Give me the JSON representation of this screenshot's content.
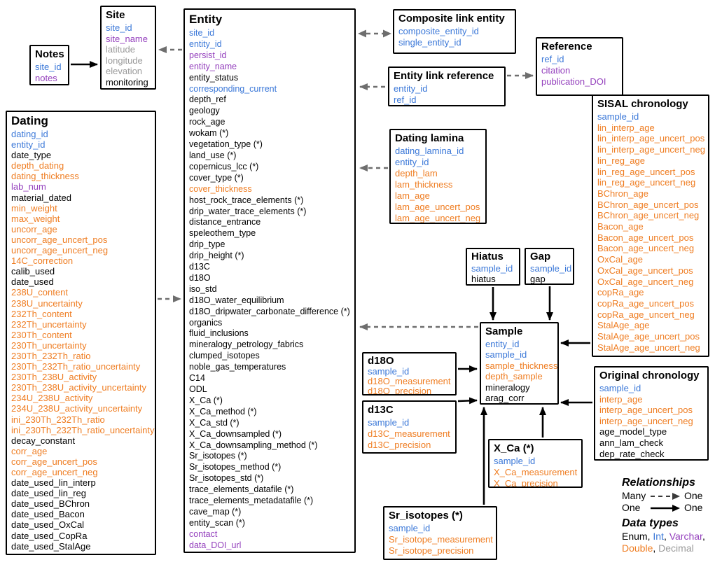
{
  "colors": {
    "int": "#3B78D8",
    "varchar": "#9440BD",
    "double": "#EF7D22",
    "decimal": "#9A9A9A",
    "enum": "#000000"
  },
  "tables": {
    "notes": {
      "title": "Notes",
      "fields": [
        {
          "name": "site_id",
          "type": "int"
        },
        {
          "name": "notes",
          "type": "varchar"
        }
      ]
    },
    "site": {
      "title": "Site",
      "fields": [
        {
          "name": "site_id",
          "type": "int"
        },
        {
          "name": "site_name",
          "type": "varchar"
        },
        {
          "name": "latitude",
          "type": "decimal"
        },
        {
          "name": "longitude",
          "type": "decimal"
        },
        {
          "name": "elevation",
          "type": "decimal"
        },
        {
          "name": "monitoring",
          "type": "enum"
        }
      ]
    },
    "entity": {
      "title": "Entity",
      "fields": [
        {
          "name": "site_id",
          "type": "int"
        },
        {
          "name": "entity_id",
          "type": "int"
        },
        {
          "name": "persist_id",
          "type": "varchar"
        },
        {
          "name": "entity_name",
          "type": "varchar"
        },
        {
          "name": "entity_status",
          "type": "enum"
        },
        {
          "name": "corresponding_current",
          "type": "int"
        },
        {
          "name": "depth_ref",
          "type": "enum"
        },
        {
          "name": "geology",
          "type": "enum"
        },
        {
          "name": "rock_age",
          "type": "enum"
        },
        {
          "name": "wokam (*)",
          "type": "enum"
        },
        {
          "name": "vegetation_type (*)",
          "type": "enum"
        },
        {
          "name": "land_use (*)",
          "type": "enum"
        },
        {
          "name": "copernicus_lcc (*)",
          "type": "enum"
        },
        {
          "name": "cover_type (*)",
          "type": "enum"
        },
        {
          "name": "cover_thickness",
          "type": "double"
        },
        {
          "name": "host_rock_trace_elements (*)",
          "type": "enum"
        },
        {
          "name": "drip_water_trace_elements (*)",
          "type": "enum"
        },
        {
          "name": "distance_entrance",
          "type": "enum"
        },
        {
          "name": "speleothem_type",
          "type": "enum"
        },
        {
          "name": "drip_type",
          "type": "enum"
        },
        {
          "name": "drip_height (*)",
          "type": "enum"
        },
        {
          "name": "d13C",
          "type": "enum"
        },
        {
          "name": "d18O",
          "type": "enum"
        },
        {
          "name": "iso_std",
          "type": "enum"
        },
        {
          "name": "d18O_water_equilibrium",
          "type": "enum"
        },
        {
          "name": "d18O_dripwater_carbonate_difference (*)",
          "type": "enum"
        },
        {
          "name": "organics",
          "type": "enum"
        },
        {
          "name": "fluid_inclusions",
          "type": "enum"
        },
        {
          "name": "mineralogy_petrology_fabrics",
          "type": "enum"
        },
        {
          "name": "clumped_isotopes",
          "type": "enum"
        },
        {
          "name": "noble_gas_temperatures",
          "type": "enum"
        },
        {
          "name": "C14",
          "type": "enum"
        },
        {
          "name": "ODL",
          "type": "enum"
        },
        {
          "name": "X_Ca (*)",
          "type": "enum"
        },
        {
          "name": "X_Ca_method (*)",
          "type": "enum"
        },
        {
          "name": "X_Ca_std (*)",
          "type": "enum"
        },
        {
          "name": "X_Ca_downsampled (*)",
          "type": "enum"
        },
        {
          "name": "X_Ca_downsampling_method (*)",
          "type": "enum"
        },
        {
          "name": "Sr_isotopes (*)",
          "type": "enum"
        },
        {
          "name": "Sr_isotopes_method (*)",
          "type": "enum"
        },
        {
          "name": "Sr_isotopes_std (*)",
          "type": "enum"
        },
        {
          "name": "trace_elements_datafile (*)",
          "type": "enum"
        },
        {
          "name": "trace_elements_metadatafile (*)",
          "type": "enum"
        },
        {
          "name": "cave_map (*)",
          "type": "enum"
        },
        {
          "name": "entity_scan (*)",
          "type": "enum"
        },
        {
          "name": "contact",
          "type": "varchar"
        },
        {
          "name": "data_DOI_url",
          "type": "varchar"
        }
      ]
    },
    "composite_link_entity": {
      "title": "Composite link entity",
      "fields": [
        {
          "name": "composite_entity_id",
          "type": "int"
        },
        {
          "name": "single_entity_id",
          "type": "int"
        }
      ]
    },
    "entity_link_reference": {
      "title": "Entity link reference",
      "fields": [
        {
          "name": "entity_id",
          "type": "int"
        },
        {
          "name": "ref_id",
          "type": "int"
        }
      ]
    },
    "reference": {
      "title": "Reference",
      "fields": [
        {
          "name": "ref_id",
          "type": "int"
        },
        {
          "name": "citation",
          "type": "varchar"
        },
        {
          "name": "publication_DOI",
          "type": "varchar"
        }
      ]
    },
    "dating_lamina": {
      "title": "Dating lamina",
      "fields": [
        {
          "name": "dating_lamina_id",
          "type": "int"
        },
        {
          "name": "entity_id",
          "type": "int"
        },
        {
          "name": "depth_lam",
          "type": "double"
        },
        {
          "name": "lam_thickness",
          "type": "double"
        },
        {
          "name": "lam_age",
          "type": "double"
        },
        {
          "name": "lam_age_uncert_pos",
          "type": "double"
        },
        {
          "name": "lam_age_uncert_neg",
          "type": "double"
        }
      ]
    },
    "sisal_chronology": {
      "title": "SISAL chronology",
      "fields": [
        {
          "name": "sample_id",
          "type": "int"
        },
        {
          "name": "lin_interp_age",
          "type": "double"
        },
        {
          "name": "lin_interp_age_uncert_pos",
          "type": "double"
        },
        {
          "name": "lin_interp_age_uncert_neg",
          "type": "double"
        },
        {
          "name": "lin_reg_age",
          "type": "double"
        },
        {
          "name": "lin_reg_age_uncert_pos",
          "type": "double"
        },
        {
          "name": "lin_reg_age_uncert_neg",
          "type": "double"
        },
        {
          "name": "BChron_age",
          "type": "double"
        },
        {
          "name": "BChron_age_uncert_pos",
          "type": "double"
        },
        {
          "name": "BChron_age_uncert_neg",
          "type": "double"
        },
        {
          "name": "Bacon_age",
          "type": "double"
        },
        {
          "name": "Bacon_age_uncert_pos",
          "type": "double"
        },
        {
          "name": "Bacon_age_uncert_neg",
          "type": "double"
        },
        {
          "name": "OxCal_age",
          "type": "double"
        },
        {
          "name": "OxCal_age_uncert_pos",
          "type": "double"
        },
        {
          "name": "OxCal_age_uncert_neg",
          "type": "double"
        },
        {
          "name": "copRa_age",
          "type": "double"
        },
        {
          "name": "copRa_age_uncert_pos",
          "type": "double"
        },
        {
          "name": "copRa_age_uncert_neg",
          "type": "double"
        },
        {
          "name": "StalAge_age",
          "type": "double"
        },
        {
          "name": "StalAge_age_uncert_pos",
          "type": "double"
        },
        {
          "name": "StalAge_age_uncert_neg",
          "type": "double"
        }
      ]
    },
    "dating": {
      "title": "Dating",
      "fields": [
        {
          "name": "dating_id",
          "type": "int"
        },
        {
          "name": "entity_id",
          "type": "int"
        },
        {
          "name": "date_type",
          "type": "enum"
        },
        {
          "name": "depth_dating",
          "type": "double"
        },
        {
          "name": "dating_thickness",
          "type": "double"
        },
        {
          "name": "lab_num",
          "type": "varchar"
        },
        {
          "name": "material_dated",
          "type": "enum"
        },
        {
          "name": "min_weight",
          "type": "double"
        },
        {
          "name": "max_weight",
          "type": "double"
        },
        {
          "name": "uncorr_age",
          "type": "double"
        },
        {
          "name": "uncorr_age_uncert_pos",
          "type": "double"
        },
        {
          "name": "uncorr_age_uncert_neg",
          "type": "double"
        },
        {
          "name": "14C_correction",
          "type": "double"
        },
        {
          "name": "calib_used",
          "type": "enum"
        },
        {
          "name": "date_used",
          "type": "enum"
        },
        {
          "name": "238U_content",
          "type": "double"
        },
        {
          "name": "238U_uncertainty",
          "type": "double"
        },
        {
          "name": "232Th_content",
          "type": "double"
        },
        {
          "name": "232Th_uncertainty",
          "type": "double"
        },
        {
          "name": "230Th_content",
          "type": "double"
        },
        {
          "name": "230Th_uncertainty",
          "type": "double"
        },
        {
          "name": "230Th_232Th_ratio",
          "type": "double"
        },
        {
          "name": "230Th_232Th_ratio_uncertainty",
          "type": "double"
        },
        {
          "name": "230Th_238U_activity",
          "type": "double"
        },
        {
          "name": "230Th_238U_activity_uncertainty",
          "type": "double"
        },
        {
          "name": "234U_238U_activity",
          "type": "double"
        },
        {
          "name": "234U_238U_activity_uncertainty",
          "type": "double"
        },
        {
          "name": "ini_230Th_232Th_ratio",
          "type": "double"
        },
        {
          "name": "ini_230Th_232Th_ratio_uncertainty",
          "type": "double"
        },
        {
          "name": "decay_constant",
          "type": "enum"
        },
        {
          "name": "corr_age",
          "type": "double"
        },
        {
          "name": "corr_age_uncert_pos",
          "type": "double"
        },
        {
          "name": "corr_age_uncert_neg",
          "type": "double"
        },
        {
          "name": "date_used_lin_interp",
          "type": "enum"
        },
        {
          "name": "date_used_lin_reg",
          "type": "enum"
        },
        {
          "name": "date_used_BChron",
          "type": "enum"
        },
        {
          "name": "date_used_Bacon",
          "type": "enum"
        },
        {
          "name": "date_used_OxCal",
          "type": "enum"
        },
        {
          "name": "date_used_CopRa",
          "type": "enum"
        },
        {
          "name": "date_used_StalAge",
          "type": "enum"
        }
      ]
    },
    "hiatus": {
      "title": "Hiatus",
      "fields": [
        {
          "name": "sample_id",
          "type": "int"
        },
        {
          "name": "hiatus",
          "type": "enum"
        }
      ]
    },
    "gap": {
      "title": "Gap",
      "fields": [
        {
          "name": "sample_id",
          "type": "int"
        },
        {
          "name": "gap",
          "type": "enum"
        }
      ]
    },
    "sample": {
      "title": "Sample",
      "fields": [
        {
          "name": "entity_id",
          "type": "int"
        },
        {
          "name": "sample_id",
          "type": "int"
        },
        {
          "name": "sample_thickness",
          "type": "double"
        },
        {
          "name": "depth_sample",
          "type": "double"
        },
        {
          "name": "mineralogy",
          "type": "enum"
        },
        {
          "name": "arag_corr",
          "type": "enum"
        }
      ]
    },
    "d18o": {
      "title": "d18O",
      "fields": [
        {
          "name": "sample_id",
          "type": "int"
        },
        {
          "name": "d18O_measurement",
          "type": "double"
        },
        {
          "name": "d18O_precision",
          "type": "double"
        }
      ]
    },
    "d13c": {
      "title": "d13C",
      "fields": [
        {
          "name": "sample_id",
          "type": "int"
        },
        {
          "name": "d13C_measurement",
          "type": "double"
        },
        {
          "name": "d13C_precision",
          "type": "double"
        }
      ]
    },
    "x_ca": {
      "title": "X_Ca (*)",
      "fields": [
        {
          "name": "sample_id",
          "type": "int"
        },
        {
          "name": "X_Ca_measurement",
          "type": "double"
        },
        {
          "name": "X_Ca_precision",
          "type": "double"
        }
      ]
    },
    "sr_isotopes": {
      "title": "Sr_isotopes (*)",
      "fields": [
        {
          "name": "sample_id",
          "type": "int"
        },
        {
          "name": "Sr_isotope_measurement",
          "type": "double"
        },
        {
          "name": "Sr_isotope_precision",
          "type": "double"
        }
      ]
    },
    "original_chronology": {
      "title": "Original chronology",
      "fields": [
        {
          "name": "sample_id",
          "type": "int"
        },
        {
          "name": "interp_age",
          "type": "double"
        },
        {
          "name": "interp_age_uncert_pos",
          "type": "double"
        },
        {
          "name": "interp_age_uncert_neg",
          "type": "double"
        },
        {
          "name": "age_model_type",
          "type": "enum"
        },
        {
          "name": "ann_lam_check",
          "type": "enum"
        },
        {
          "name": "dep_rate_check",
          "type": "enum"
        }
      ]
    }
  },
  "relationships": [
    {
      "from": "Notes",
      "to": "Site",
      "style": "solid"
    },
    {
      "from": "Entity",
      "to": "Site",
      "style": "dashed"
    },
    {
      "from": "Entity",
      "to": "Composite link entity",
      "style": "dashed-both"
    },
    {
      "from": "Entity link reference",
      "to": "Entity",
      "style": "dashed"
    },
    {
      "from": "Entity link reference",
      "to": "Reference",
      "style": "dashed"
    },
    {
      "from": "Dating lamina",
      "to": "Entity",
      "style": "dashed"
    },
    {
      "from": "Dating",
      "to": "Entity",
      "style": "dashed"
    },
    {
      "from": "Sample",
      "to": "Entity",
      "style": "dashed"
    },
    {
      "from": "Hiatus",
      "to": "Sample",
      "style": "solid"
    },
    {
      "from": "Gap",
      "to": "Sample",
      "style": "solid"
    },
    {
      "from": "d18O",
      "to": "Sample",
      "style": "solid"
    },
    {
      "from": "d13C",
      "to": "Sample",
      "style": "solid"
    },
    {
      "from": "X_Ca (*)",
      "to": "Sample",
      "style": "solid"
    },
    {
      "from": "Sr_isotopes (*)",
      "to": "Sample",
      "style": "solid"
    },
    {
      "from": "SISAL chronology",
      "to": "Sample",
      "style": "solid"
    },
    {
      "from": "Original chronology",
      "to": "Sample",
      "style": "solid"
    }
  ],
  "legend": {
    "relationships": {
      "title": "Relationships",
      "rows": [
        {
          "left": "Many",
          "right": "One",
          "style": "dashed"
        },
        {
          "left": "One",
          "right": "One",
          "style": "solid"
        }
      ]
    },
    "data_types": {
      "title": "Data types",
      "types": [
        {
          "label": "Enum",
          "type": "enum"
        },
        {
          "label": "Int",
          "type": "int"
        },
        {
          "label": "Varchar",
          "type": "varchar"
        },
        {
          "label": "Double",
          "type": "double"
        },
        {
          "label": "Decimal",
          "type": "decimal"
        }
      ]
    }
  }
}
